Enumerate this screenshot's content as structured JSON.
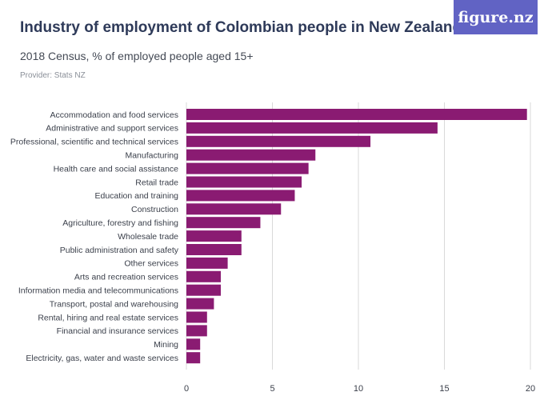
{
  "header": {
    "title": "Industry of employment of Colombian people in New Zealand",
    "subtitle": "2018 Census, % of employed people aged 15+",
    "provider": "Provider: Stats NZ",
    "logo_text": "figure.nz"
  },
  "colors": {
    "bar": "#8a1b72",
    "grid": "#d9d9d9",
    "logo_bg": "#6163c4"
  },
  "chart_data": {
    "type": "bar",
    "orientation": "horizontal",
    "categories": [
      "Accommodation and food services",
      "Administrative and support services",
      "Professional, scientific and technical services",
      "Manufacturing",
      "Health care and social assistance",
      "Retail trade",
      "Education and training",
      "Construction",
      "Agriculture, forestry and fishing",
      "Wholesale trade",
      "Public administration and safety",
      "Other services",
      "Arts and recreation services",
      "Information media and telecommunications",
      "Transport, postal and warehousing",
      "Rental, hiring and real estate services",
      "Financial and insurance services",
      "Mining",
      "Electricity, gas, water and waste services"
    ],
    "values": [
      19.8,
      14.6,
      10.7,
      7.5,
      7.1,
      6.7,
      6.3,
      5.5,
      4.3,
      3.2,
      3.2,
      2.4,
      2.0,
      2.0,
      1.6,
      1.2,
      1.2,
      0.8,
      0.8
    ],
    "xlim": [
      0,
      20
    ],
    "xticks": [
      "0",
      "5",
      "10",
      "15",
      "20"
    ],
    "grid": "vertical",
    "title": "Industry of employment of Colombian people in New Zealand",
    "subtitle": "2018 Census, % of employed people aged 15+"
  }
}
